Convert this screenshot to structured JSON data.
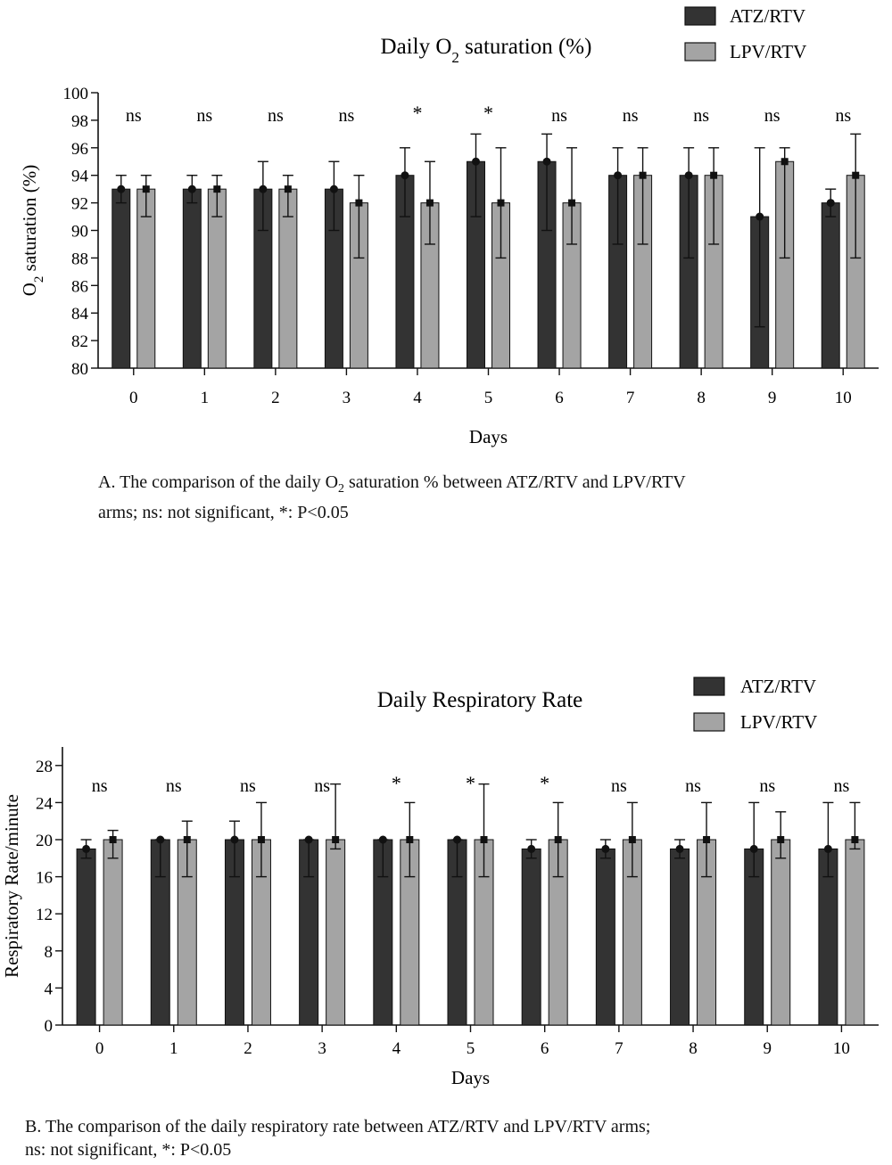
{
  "charts": [
    {
      "id": "a",
      "type": "bar",
      "title_pre": "Daily O",
      "title_sub": "2",
      "title_post": " saturation (%)",
      "ylabel_pre": "O",
      "ylabel_sub": "2",
      "ylabel_post": " saturation (%)",
      "xlabel": "Days",
      "ylim": [
        80,
        100
      ],
      "yticks": [
        80,
        82,
        84,
        86,
        88,
        90,
        92,
        94,
        96,
        98,
        100
      ],
      "categories": [
        "0",
        "1",
        "2",
        "3",
        "4",
        "5",
        "6",
        "7",
        "8",
        "9",
        "10"
      ],
      "series": [
        {
          "name": "ATZ/RTV",
          "color": "#333333",
          "values": [
            93,
            93,
            93,
            93,
            94,
            95,
            95,
            94,
            94,
            91,
            92
          ],
          "err_low": [
            92,
            92,
            90,
            90,
            91,
            91,
            90,
            89,
            88,
            83,
            91
          ],
          "err_high": [
            94,
            94,
            95,
            95,
            96,
            97,
            97,
            96,
            96,
            96,
            93
          ]
        },
        {
          "name": "LPV/RTV",
          "color": "#a4a4a4",
          "values": [
            93,
            93,
            93,
            92,
            92,
            92,
            92,
            94,
            94,
            95,
            94
          ],
          "err_low": [
            91,
            91,
            91,
            88,
            89,
            88,
            89,
            89,
            89,
            88,
            88
          ],
          "err_high": [
            94,
            94,
            94,
            94,
            95,
            96,
            96,
            96,
            96,
            96,
            97
          ]
        }
      ],
      "annotations": [
        "ns",
        "ns",
        "ns",
        "ns",
        "*",
        "*",
        "ns",
        "ns",
        "ns",
        "ns",
        "ns"
      ],
      "legend_position": "top-right",
      "caption_line1_pre": "A. The comparison of the daily O",
      "caption_line1_sub": "2",
      "caption_line1_post": " saturation % between ATZ/RTV and LPV/RTV",
      "caption_line2": "arms; ns: not significant, *: P<0.05"
    },
    {
      "id": "b",
      "type": "bar",
      "title": "Daily Respiratory Rate",
      "ylabel": "Respiratory Rate/minute",
      "xlabel": "Days",
      "ylim": [
        0,
        30
      ],
      "yticks": [
        0,
        4,
        8,
        12,
        16,
        20,
        24,
        28
      ],
      "categories": [
        "0",
        "1",
        "2",
        "3",
        "4",
        "5",
        "6",
        "7",
        "8",
        "9",
        "10"
      ],
      "series": [
        {
          "name": "ATZ/RTV",
          "color": "#333333",
          "values": [
            19,
            20,
            20,
            20,
            20,
            20,
            19,
            19,
            19,
            19,
            19
          ],
          "err_low": [
            18,
            16,
            16,
            16,
            16,
            16,
            18,
            18,
            18,
            16,
            16
          ],
          "err_high": [
            20,
            20,
            22,
            20,
            20,
            20,
            20,
            20,
            20,
            24,
            24
          ]
        },
        {
          "name": "LPV/RTV",
          "color": "#a4a4a4",
          "values": [
            20,
            20,
            20,
            20,
            20,
            20,
            20,
            20,
            20,
            20,
            20
          ],
          "err_low": [
            18,
            16,
            16,
            19,
            16,
            16,
            16,
            16,
            16,
            18,
            19
          ],
          "err_high": [
            21,
            22,
            24,
            26,
            24,
            26,
            24,
            24,
            24,
            23,
            24
          ]
        }
      ],
      "annotations": [
        "ns",
        "ns",
        "ns",
        "ns",
        "*",
        "*",
        "*",
        "ns",
        "ns",
        "ns",
        "ns"
      ],
      "legend_position": "top-right",
      "caption_line1": "B. The comparison of the daily respiratory rate between ATZ/RTV and LPV/RTV arms;",
      "caption_line2": "ns: not significant, *: P<0.05"
    }
  ]
}
